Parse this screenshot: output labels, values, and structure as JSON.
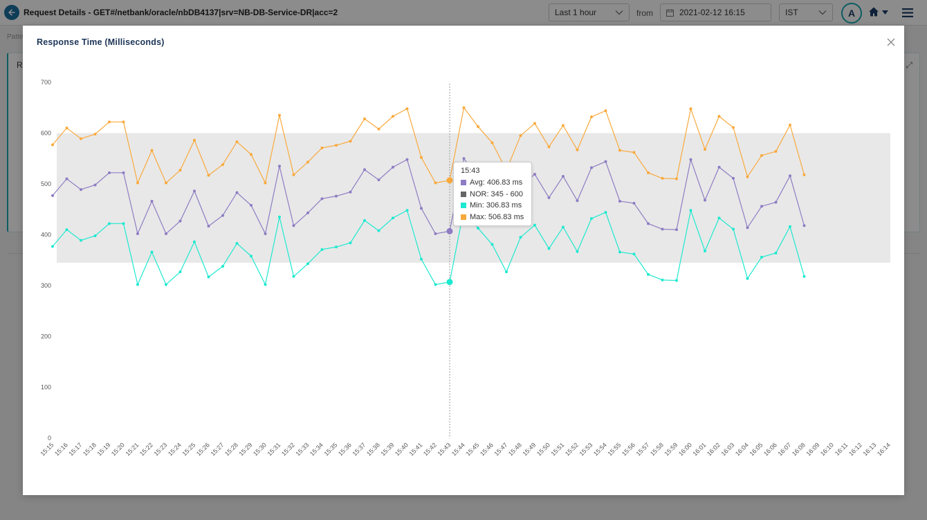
{
  "header": {
    "title": "Request Details - GET#/netbank/oracle/nbDB4137|srv=NB-DB-Service-DR|acc=2",
    "range": "Last 1 hour",
    "from_label": "from",
    "date": "2021-02-12 16:15",
    "timezone": "IST",
    "avatar": "A",
    "icons": [
      "back-arrow-icon",
      "calendar-icon",
      "chevron-down-icon",
      "home-icon",
      "menu-icon"
    ]
  },
  "background": {
    "patt_label": "Patte",
    "card_letter": "Re"
  },
  "modal": {
    "title": "Response Time (Milliseconds)"
  },
  "colors": {
    "avg": "#8e7cc3",
    "nor": "#e8e8e8",
    "min": "#1de9d0",
    "max": "#f9a93c",
    "accent": "#1a6fa0"
  },
  "tooltip": {
    "time": "15:43",
    "avg": "Avg: 406.83 ms",
    "nor": "NOR: 345 - 600",
    "min": "Min: 306.83 ms",
    "max": "Max: 506.83 ms"
  },
  "chart_data": {
    "type": "line",
    "title": "Response Time (Milliseconds)",
    "ylim": [
      0,
      700
    ],
    "yticks": [
      0,
      100,
      200,
      300,
      400,
      500,
      600,
      700
    ],
    "grid": false,
    "x": [
      "15:15",
      "15:16",
      "15:17",
      "15:18",
      "15:19",
      "15:20",
      "15:21",
      "15:22",
      "15:23",
      "15:24",
      "15:25",
      "15:26",
      "15:27",
      "15:28",
      "15:29",
      "15:30",
      "15:31",
      "15:32",
      "15:33",
      "15:34",
      "15:35",
      "15:36",
      "15:37",
      "15:38",
      "15:39",
      "15:40",
      "15:41",
      "15:42",
      "15:43",
      "15:44",
      "15:45",
      "15:46",
      "15:47",
      "15:48",
      "15:49",
      "15:50",
      "15:51",
      "15:52",
      "15:53",
      "15:54",
      "15:55",
      "15:56",
      "15:57",
      "15:58",
      "15:59",
      "16:00",
      "16:01",
      "16:02",
      "16:03",
      "16:04",
      "16:05",
      "16:06",
      "16:07",
      "16:08",
      "16:09",
      "16:10",
      "16:11",
      "16:12",
      "16:13",
      "16:14"
    ],
    "nor_band": [
      345,
      600
    ],
    "highlight_index": 28,
    "series": [
      {
        "name": "Max",
        "values": [
          577,
          610,
          589,
          598,
          622,
          622,
          502,
          566,
          502,
          527,
          586,
          517,
          538,
          583,
          558,
          502,
          635,
          518,
          543,
          571,
          576,
          584,
          628,
          608,
          633,
          648,
          552,
          502,
          507,
          650,
          613,
          581,
          527,
          595,
          619,
          573,
          615,
          567,
          632,
          644,
          566,
          562,
          522,
          511,
          510,
          648,
          568,
          633,
          611,
          514,
          556,
          564,
          616,
          518,
          null,
          null,
          null,
          null,
          null,
          null
        ]
      },
      {
        "name": "Avg",
        "values": [
          477,
          510,
          489,
          498,
          522,
          522,
          402,
          466,
          402,
          427,
          486,
          417,
          438,
          483,
          458,
          402,
          535,
          418,
          443,
          471,
          476,
          484,
          528,
          508,
          533,
          548,
          452,
          402,
          407,
          550,
          513,
          481,
          427,
          495,
          519,
          473,
          515,
          467,
          532,
          544,
          466,
          462,
          422,
          411,
          410,
          548,
          468,
          533,
          511,
          414,
          456,
          464,
          516,
          418,
          null,
          null,
          null,
          null,
          null,
          null
        ]
      },
      {
        "name": "Min",
        "values": [
          377,
          410,
          389,
          398,
          422,
          422,
          302,
          366,
          302,
          327,
          386,
          317,
          338,
          383,
          358,
          302,
          435,
          318,
          343,
          371,
          376,
          384,
          428,
          408,
          433,
          448,
          352,
          302,
          307,
          450,
          413,
          381,
          327,
          395,
          419,
          373,
          415,
          367,
          432,
          444,
          366,
          362,
          322,
          311,
          310,
          448,
          368,
          433,
          411,
          314,
          356,
          364,
          416,
          318,
          null,
          null,
          null,
          null,
          null,
          null
        ]
      }
    ]
  }
}
